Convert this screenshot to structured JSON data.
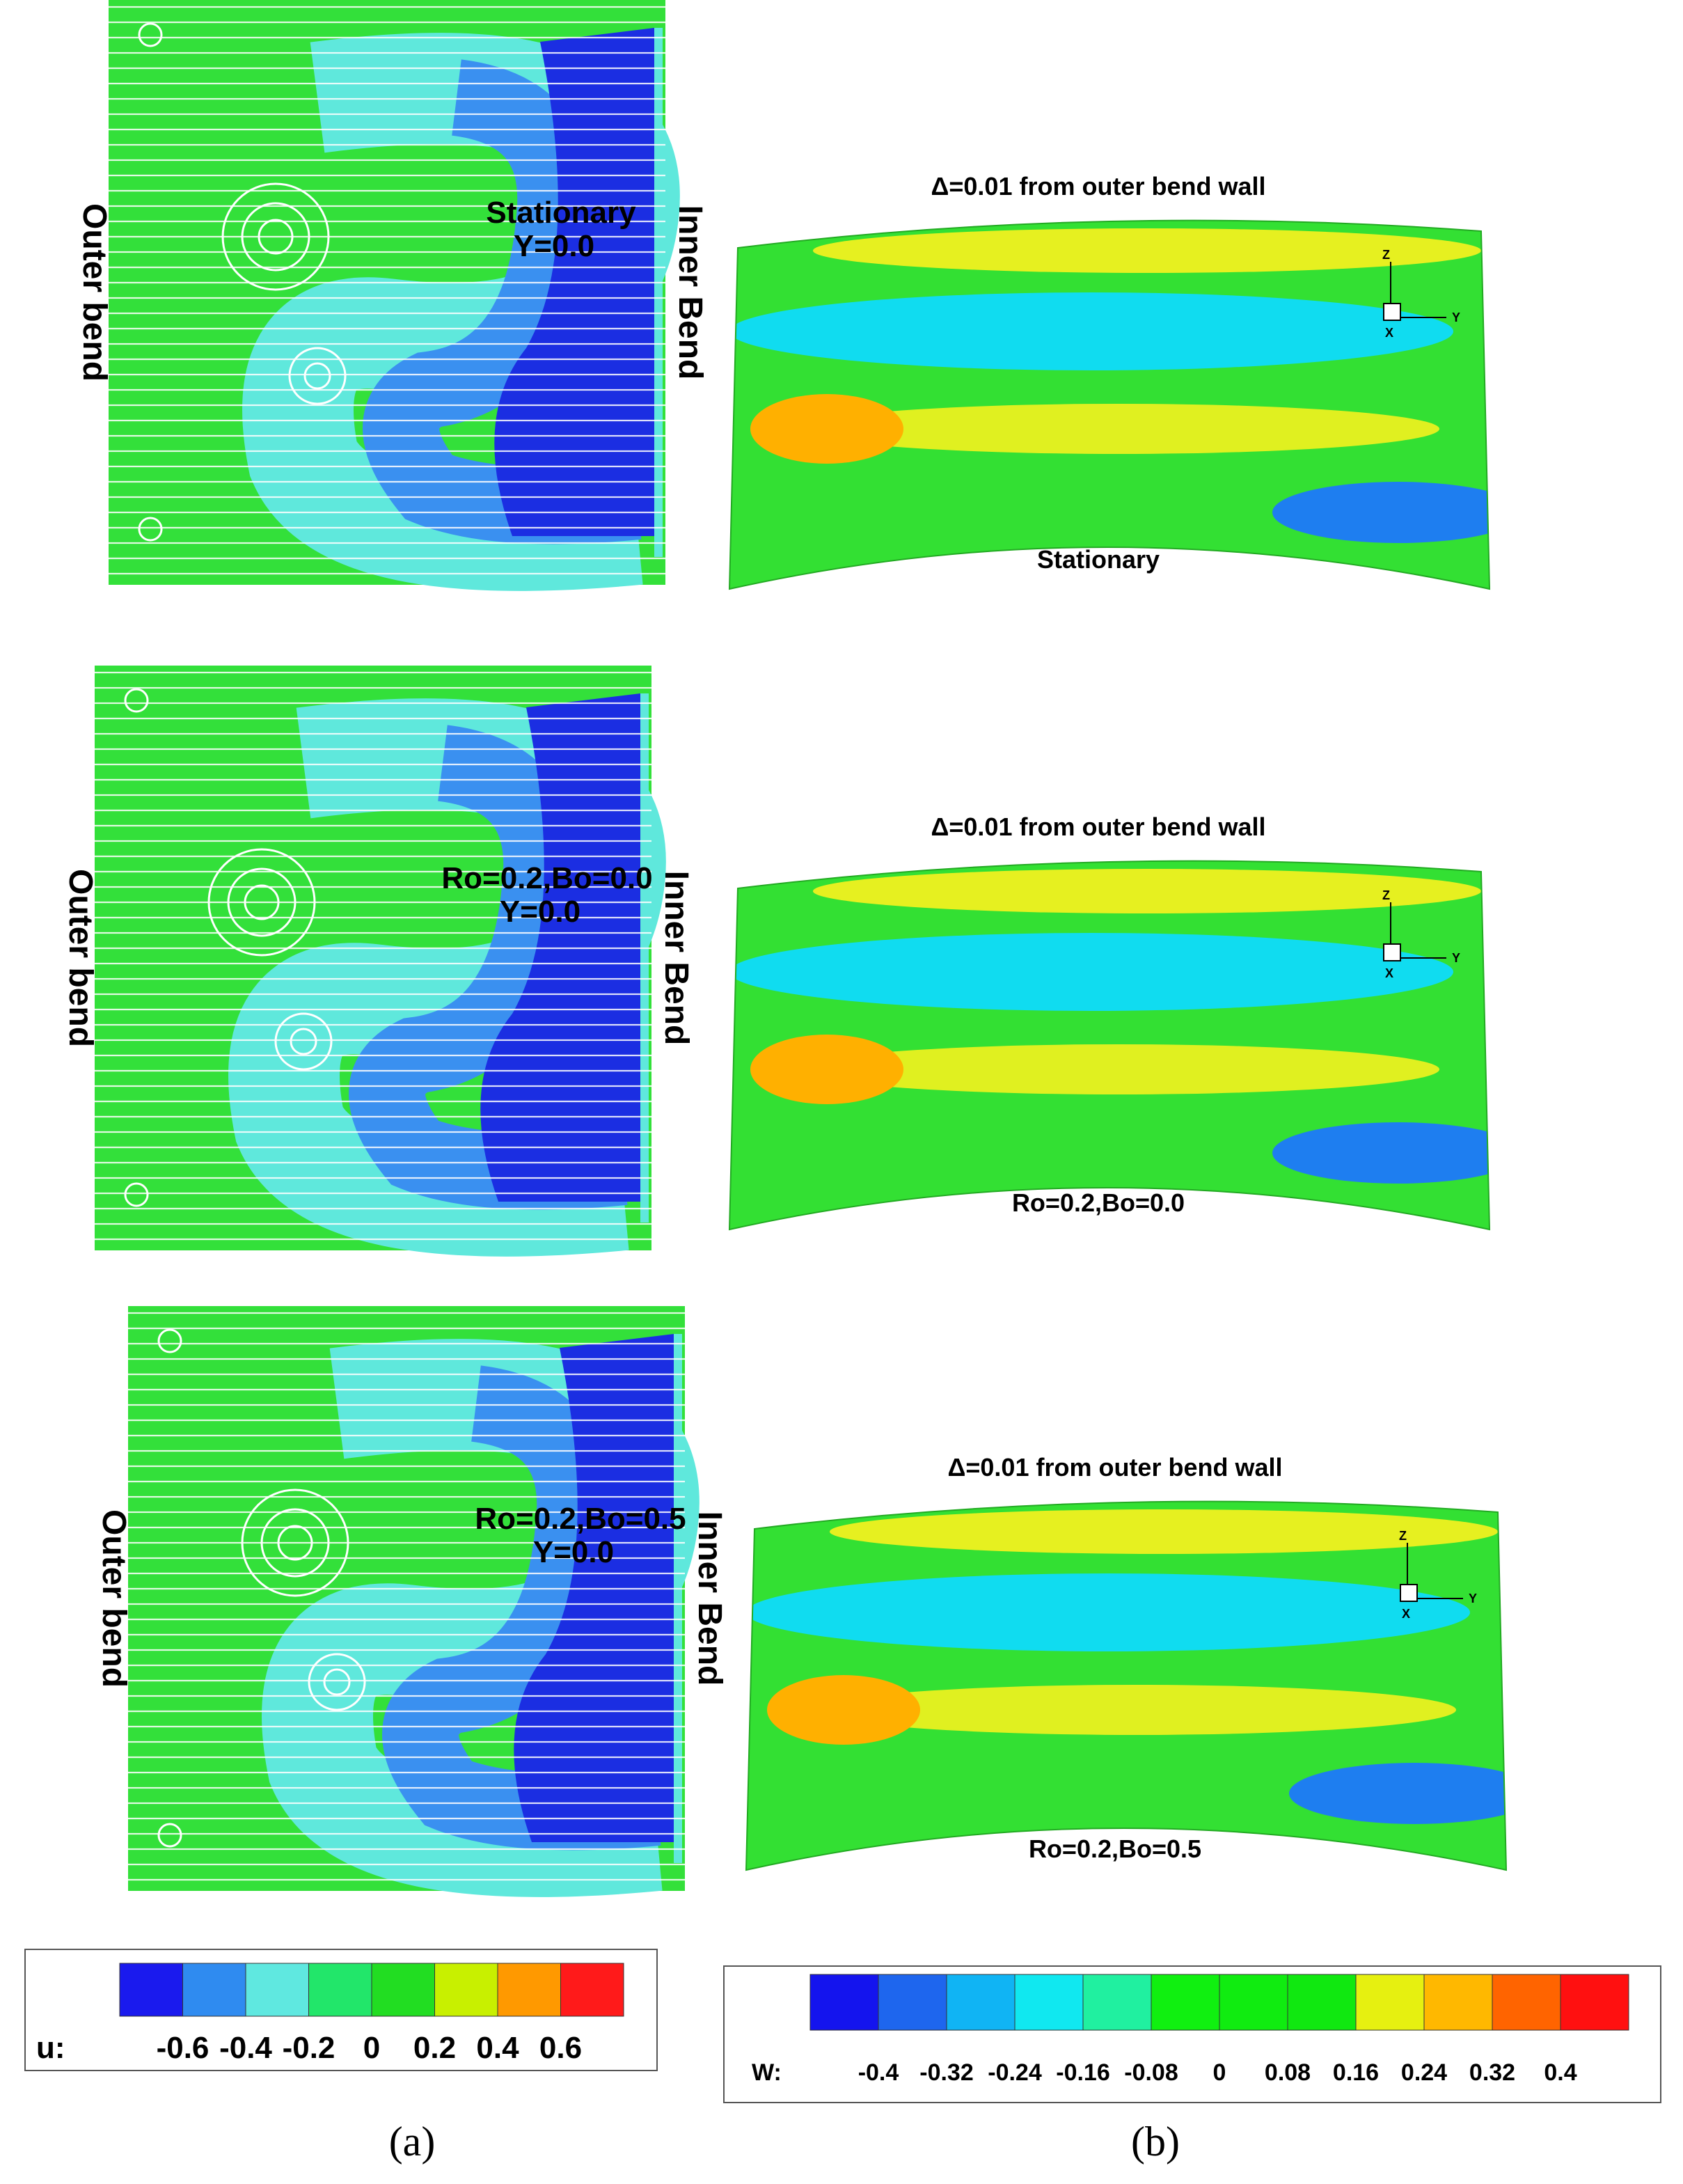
{
  "panel_a": {
    "caption": "(a)",
    "plots": [
      {
        "outer_label": "Outer bend",
        "inner_label": "Inner Bend",
        "case": "Stationary",
        "plane": "Y=0.0"
      },
      {
        "outer_label": "Outer bend",
        "inner_label": "Inner Bend",
        "case": "Ro=0.2,Bo=0.0",
        "plane": "Y=0.0"
      },
      {
        "outer_label": "Outer bend",
        "inner_label": "Inner Bend",
        "case": "Ro=0.2,Bo=0.5",
        "plane": "Y=0.0"
      }
    ],
    "colorbar": {
      "label": "u:",
      "ticks": [
        -0.6,
        -0.4,
        -0.2,
        0,
        0.2,
        0.4,
        0.6
      ],
      "colors": [
        "#1a1aee",
        "#2f8bf0",
        "#5fe8e0",
        "#22e66a",
        "#22dd22",
        "#c8f000",
        "#ff9900",
        "#ff1a1a"
      ]
    }
  },
  "panel_b": {
    "caption": "(b)",
    "plots": [
      {
        "title": "Δ=0.01 from outer bend wall",
        "case": "Stationary",
        "triad": [
          "Z",
          "Y",
          "X"
        ]
      },
      {
        "title": "Δ=0.01 from outer bend wall",
        "case": "Ro=0.2,Bo=0.0",
        "triad": [
          "Z",
          "Y",
          "X"
        ]
      },
      {
        "title": "Δ=0.01 from outer bend wall",
        "case": "Ro=0.2,Bo=0.5",
        "triad": [
          "Z",
          "Y",
          "X"
        ]
      }
    ],
    "colorbar": {
      "label": "W:",
      "ticks": [
        -0.4,
        -0.32,
        -0.24,
        -0.16,
        -0.08,
        0,
        0.08,
        0.16,
        0.24,
        0.32,
        0.4
      ],
      "colors": [
        "#1414ee",
        "#1e66ee",
        "#10b4f4",
        "#10e8f0",
        "#20f0a0",
        "#10f010",
        "#10ec10",
        "#10e810",
        "#e6f010",
        "#ffb800",
        "#ff6400",
        "#ff1010"
      ]
    }
  }
}
